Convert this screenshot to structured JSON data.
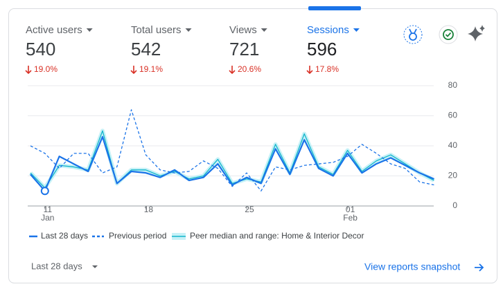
{
  "metrics": [
    {
      "label": "Active users",
      "value": 540,
      "change": "19.0%"
    },
    {
      "label": "Total users",
      "value": 542,
      "change": "19.1%"
    },
    {
      "label": "Views",
      "value": 721,
      "change": "20.6%"
    },
    {
      "label": "Sessions",
      "value": 596,
      "change": "17.8%"
    }
  ],
  "chart_data": {
    "type": "line",
    "categories": [
      null,
      "11",
      null,
      null,
      null,
      null,
      null,
      null,
      "18",
      null,
      null,
      null,
      null,
      null,
      null,
      "25",
      null,
      null,
      null,
      null,
      null,
      null,
      "01",
      null,
      null,
      null,
      null,
      null,
      null
    ],
    "category_months": [
      null,
      "Jan",
      null,
      null,
      null,
      null,
      null,
      null,
      null,
      null,
      null,
      null,
      null,
      null,
      null,
      null,
      null,
      null,
      null,
      null,
      null,
      null,
      "Feb",
      null,
      null,
      null,
      null,
      null,
      null
    ],
    "series": [
      {
        "name": "Last 28 days",
        "color": "#1a73e8",
        "style": "solid",
        "values": [
          21,
          10,
          33,
          28,
          23,
          46,
          15,
          23,
          22,
          19,
          24,
          17,
          19,
          28,
          14,
          19,
          15,
          38,
          21,
          44,
          25,
          20,
          35,
          22,
          28,
          32,
          27,
          22,
          18
        ]
      },
      {
        "name": "Previous period",
        "color": "#1a73e8",
        "style": "dashed",
        "values": [
          40,
          35,
          25,
          35,
          35,
          22,
          26,
          64,
          34,
          24,
          22,
          23,
          30,
          25,
          13,
          22,
          10,
          26,
          24,
          27,
          28,
          29,
          33,
          41,
          35,
          28,
          25,
          16,
          14
        ]
      },
      {
        "name": "Peer median and range: Home & Interior Decor",
        "color": "#12b5cb",
        "style": "peer",
        "values": [
          22,
          12,
          27,
          26,
          24,
          50,
          15,
          24,
          24,
          20,
          23,
          18,
          20,
          31,
          15,
          18,
          16,
          41,
          22,
          48,
          26,
          21,
          37,
          23,
          30,
          34,
          28,
          22,
          17
        ]
      }
    ],
    "ylim": [
      0,
      80
    ],
    "yticks": [
      0,
      20,
      40,
      60,
      80
    ],
    "grid": true
  },
  "footer": {
    "date_range": "Last 28 days",
    "link": "View reports snapshot"
  }
}
